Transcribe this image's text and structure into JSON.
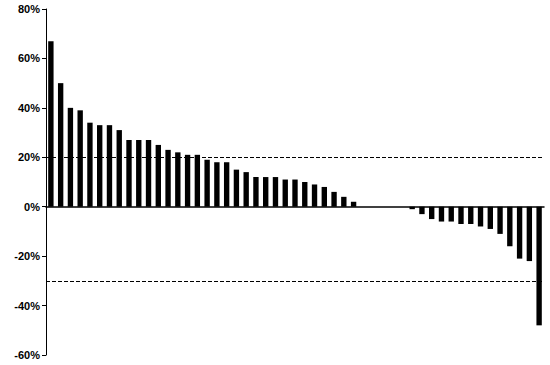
{
  "chart_data": {
    "type": "bar",
    "categories": [
      null,
      null,
      null,
      null,
      null,
      null,
      null,
      null,
      null,
      null,
      null,
      null,
      null,
      null,
      null,
      null,
      null,
      null,
      null,
      null,
      null,
      null,
      null,
      null,
      null,
      null,
      null,
      null,
      null,
      null,
      null,
      null,
      null,
      null,
      null,
      null,
      null,
      null,
      null,
      null,
      null,
      null,
      null,
      null,
      null,
      null,
      null,
      null,
      null,
      null,
      null
    ],
    "values": [
      67,
      50,
      40,
      39,
      34,
      33,
      33,
      31,
      27,
      27,
      27,
      25,
      23,
      22,
      21,
      21,
      19,
      18,
      18,
      15,
      14,
      12,
      12,
      12,
      11,
      11,
      10,
      9,
      8,
      6,
      4,
      2,
      0,
      0,
      0,
      0,
      0,
      -1,
      -3,
      -5,
      -6,
      -6,
      -7,
      -7,
      -8,
      -9,
      -11,
      -16,
      -21,
      -22,
      -48
    ],
    "color": "#000000",
    "ylim": [
      -60,
      80
    ],
    "yticks": [
      {
        "value": -60,
        "label": "-60%"
      },
      {
        "value": -40,
        "label": "-40%"
      },
      {
        "value": -20,
        "label": "-20%"
      },
      {
        "value": 0,
        "label": "0%"
      },
      {
        "value": 20,
        "label": "20%"
      },
      {
        "value": 40,
        "label": "40%"
      },
      {
        "value": 60,
        "label": "60%"
      },
      {
        "value": 80,
        "label": "80%"
      }
    ],
    "reference_lines": [
      20,
      -30
    ],
    "grid": false,
    "tick_labels": "y"
  }
}
